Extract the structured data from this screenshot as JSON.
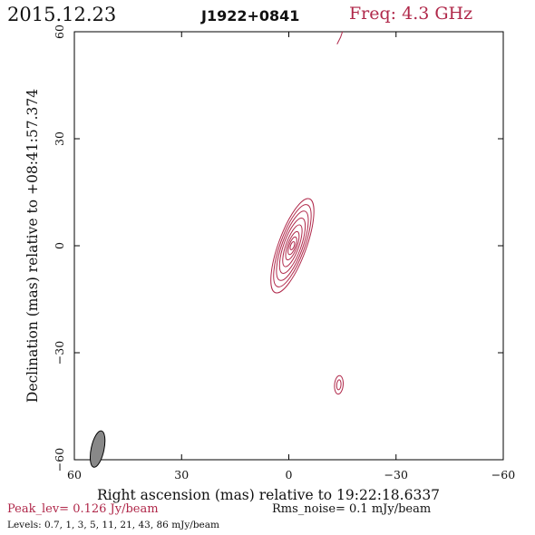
{
  "header": {
    "date": "2015.12.23",
    "source": "J1922+0841",
    "freq": "Freq: 4.3 GHz"
  },
  "colors": {
    "contour": "#b0284a",
    "freq_text": "#b0284a",
    "frame": "#000000",
    "beam_fill": "#888888"
  },
  "chart_data": {
    "type": "contour",
    "xlabel": "Right ascension (mas) relative to 19:22:18.6337",
    "ylabel": "Declination (mas) relative to +08:41:57.374",
    "xlim": [
      60,
      -60
    ],
    "ylim": [
      -60,
      60
    ],
    "xticks": [
      60,
      30,
      0,
      -30,
      -60
    ],
    "yticks": [
      60,
      30,
      0,
      -30,
      -60
    ],
    "xtick_labels": [
      "60",
      "30",
      "0",
      "−30",
      "−60"
    ],
    "ytick_labels": [
      "60",
      "30",
      "0",
      "−30",
      "−60"
    ],
    "levels_mjy": [
      0.7,
      1,
      3,
      5,
      11,
      21,
      43,
      86
    ],
    "beam": {
      "x": 53.5,
      "y": -57,
      "major": 5.2,
      "minor": 1.8,
      "pa_deg": 12
    },
    "components": [
      {
        "name": "core",
        "cx": -1,
        "cy": 0,
        "pa_deg": 20,
        "rings": [
          {
            "a": 14.0,
            "b": 3.9
          },
          {
            "a": 12.2,
            "b": 3.4
          },
          {
            "a": 10.3,
            "b": 2.9
          },
          {
            "a": 8.2,
            "b": 2.4
          },
          {
            "a": 6.2,
            "b": 1.8
          },
          {
            "a": 4.2,
            "b": 1.3
          },
          {
            "a": 2.6,
            "b": 0.9
          },
          {
            "a": 1.2,
            "b": 0.5
          }
        ]
      },
      {
        "name": "south-spot",
        "cx": -14,
        "cy": -39,
        "pa_deg": 5,
        "rings": [
          {
            "a": 2.6,
            "b": 1.2
          },
          {
            "a": 1.4,
            "b": 0.6
          }
        ]
      }
    ],
    "edge_feature": [
      [
        -13.5,
        56.5
      ],
      [
        -14.5,
        58.5
      ],
      [
        -15,
        60
      ]
    ]
  },
  "footer": {
    "peak": "Peak_lev=  0.126 Jy/beam",
    "rms": "Rms_noise=  0.1 mJy/beam",
    "levels": "Levels: 0.7,   1,   3,   5,   11,   21,   43,   86 mJy/beam"
  }
}
